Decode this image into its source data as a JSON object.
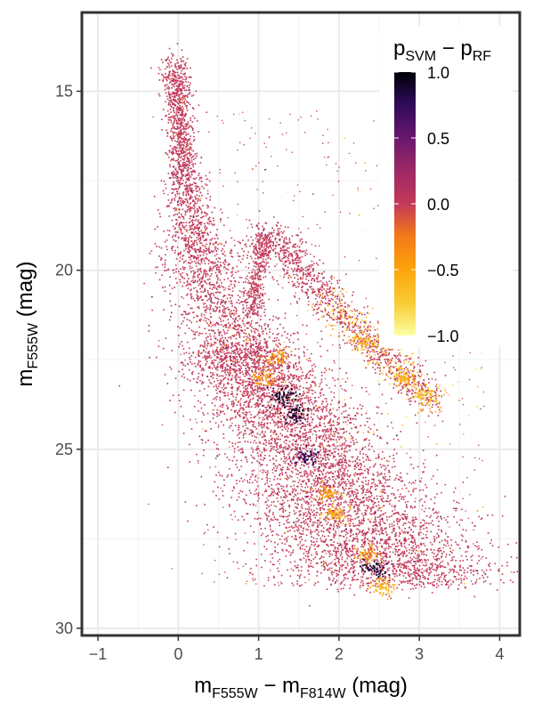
{
  "chart_data": {
    "type": "scatter",
    "x_axis": {
      "label_main": "m",
      "label_sub1": "F555W",
      "label_mid": " − m",
      "label_sub2": "F814W",
      "label_unit": " (mag)",
      "range": [
        -1.2,
        4.25
      ],
      "ticks": [
        -1,
        0,
        1,
        2,
        3,
        4
      ],
      "tick_labels": [
        "−1",
        "0",
        "1",
        "2",
        "3",
        "4"
      ]
    },
    "y_axis": {
      "label_main": "m",
      "label_sub": "F555W",
      "label_unit": " (mag)",
      "range": [
        30.2,
        12.8
      ],
      "reversed": true,
      "ticks": [
        15,
        20,
        25,
        30
      ],
      "tick_labels": [
        "15",
        "20",
        "25",
        "30"
      ]
    },
    "grid": true,
    "colorbar": {
      "title_main1": "p",
      "title_sub1": "SVM",
      "title_mid": " − p",
      "title_sub2": "RF",
      "range": [
        -1.0,
        1.0
      ],
      "ticks": [
        1.0,
        0.5,
        0.0,
        -0.5,
        -1.0
      ],
      "tick_labels": [
        "1.0",
        "0.5",
        "0.0",
        "−0.5",
        "−1.0"
      ],
      "colormap": "inferno",
      "placement": "inside-top-right"
    },
    "point_color_default": "#c2395a",
    "structures": {
      "main_sequence_ridge": [
        [
          -0.1,
          14.2
        ],
        [
          0.0,
          17.0
        ],
        [
          0.1,
          19.5
        ],
        [
          0.4,
          21.5
        ],
        [
          0.9,
          23.0
        ],
        [
          1.3,
          24.5
        ],
        [
          1.6,
          26.0
        ],
        [
          2.0,
          27.3
        ],
        [
          2.4,
          28.3
        ],
        [
          2.6,
          28.7
        ]
      ],
      "giant_branch": [
        [
          0.95,
          19.5
        ],
        [
          1.05,
          19.0
        ],
        [
          1.3,
          19.3
        ],
        [
          1.6,
          20.2
        ],
        [
          2.0,
          21.2
        ],
        [
          2.6,
          22.5
        ],
        [
          3.2,
          23.7
        ]
      ],
      "subgiant_spur": [
        [
          0.9,
          21.2
        ],
        [
          1.0,
          20.0
        ],
        [
          1.05,
          19.2
        ]
      ]
    },
    "highlight_points": [
      {
        "x": 2.55,
        "y": 28.8,
        "v": -0.6
      },
      {
        "x": 2.45,
        "y": 28.3,
        "v": 0.9
      },
      {
        "x": 2.35,
        "y": 27.9,
        "v": -0.4
      },
      {
        "x": 1.95,
        "y": 26.8,
        "v": -0.5
      },
      {
        "x": 1.85,
        "y": 26.2,
        "v": -0.45
      },
      {
        "x": 1.6,
        "y": 25.2,
        "v": 0.7
      },
      {
        "x": 1.45,
        "y": 24.0,
        "v": 0.85
      },
      {
        "x": 1.3,
        "y": 23.5,
        "v": 0.9
      },
      {
        "x": 1.05,
        "y": 23.0,
        "v": -0.5
      },
      {
        "x": 1.2,
        "y": 22.4,
        "v": -0.4
      },
      {
        "x": 2.3,
        "y": 22.0,
        "v": -0.55
      },
      {
        "x": 2.8,
        "y": 23.0,
        "v": -0.6
      },
      {
        "x": 3.1,
        "y": 23.5,
        "v": -0.7
      }
    ]
  },
  "colors": {
    "panel_border": "#333333",
    "grid_major": "#ebebeb",
    "grid_minor": "#f5f5f5"
  }
}
